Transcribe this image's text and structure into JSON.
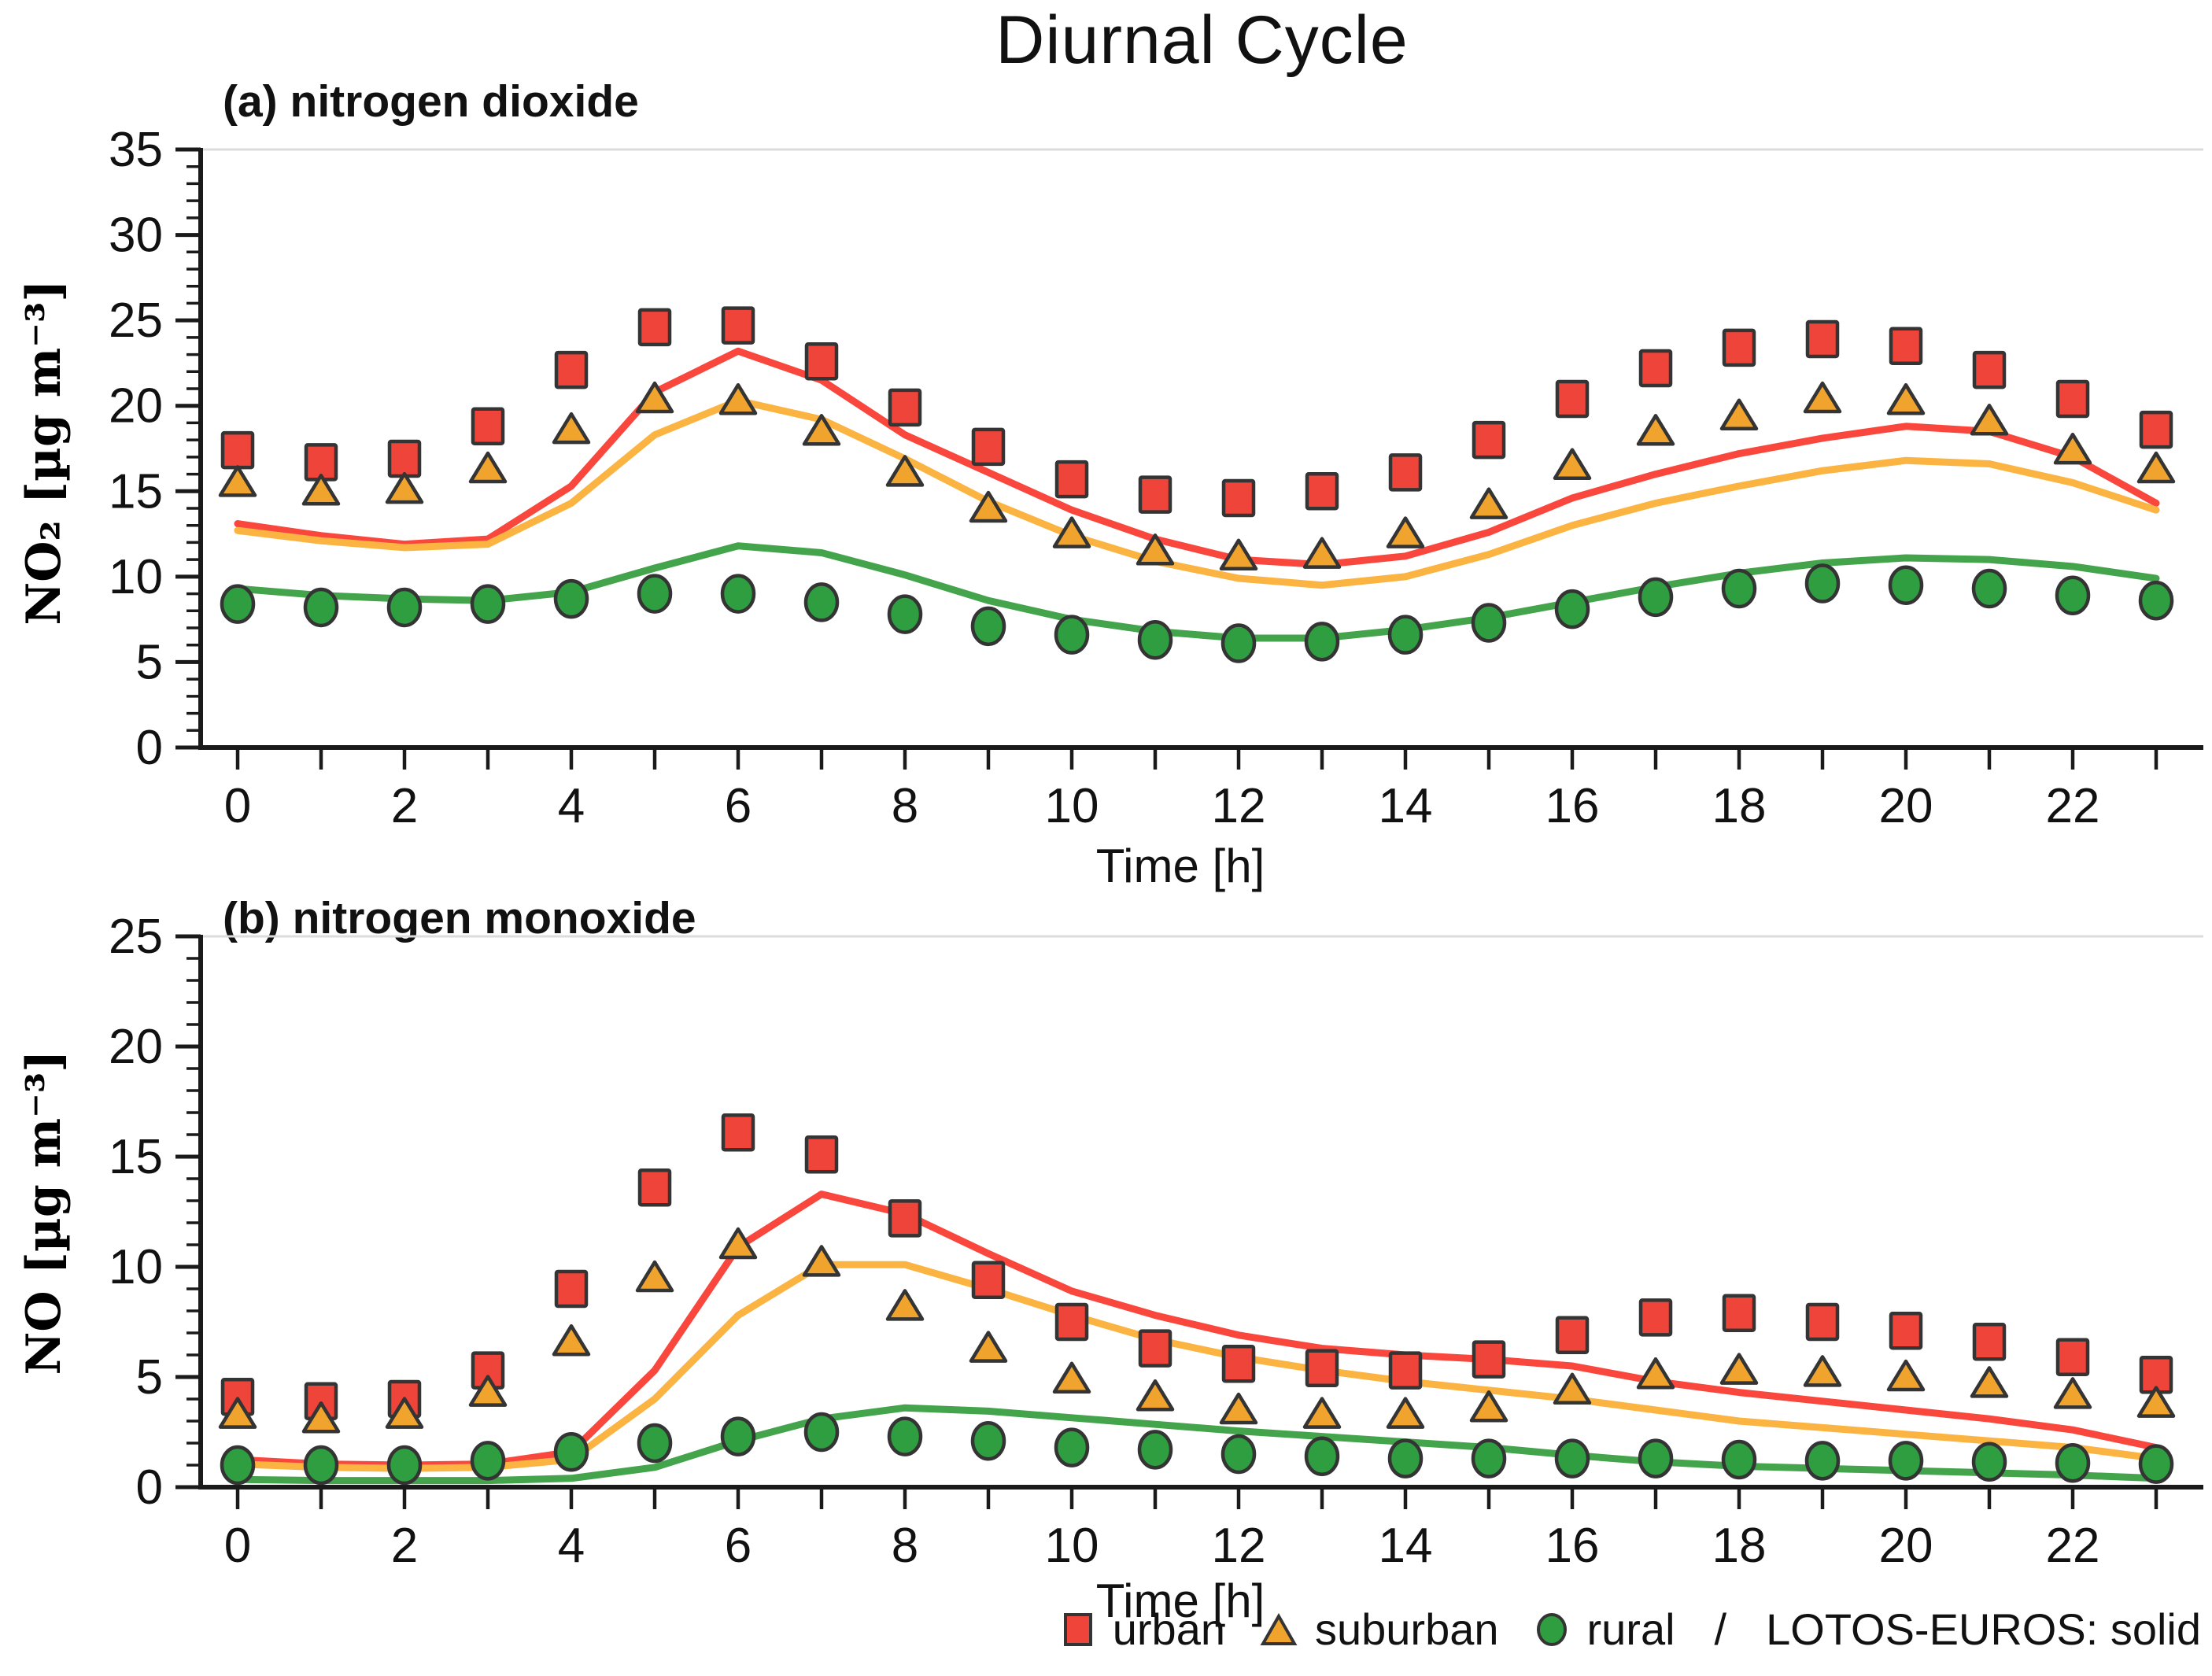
{
  "title": "Diurnal Cycle",
  "legend": {
    "items": [
      {
        "label": "urban",
        "marker": "square",
        "color": "#ee443a"
      },
      {
        "label": "suburban",
        "marker": "triangle",
        "color": "#f0a42e"
      },
      {
        "label": "rural",
        "marker": "circle",
        "color": "#2e9e41"
      }
    ],
    "separator": "/",
    "note": "LOTOS-EUROS: solid"
  },
  "colors": {
    "urban_marker": "#ee443a",
    "urban_line": "#f9473d",
    "suburban_marker": "#f0a42e",
    "suburban_line": "#fbb441",
    "rural_marker": "#2e9e41",
    "rural_line": "#43a44c",
    "marker_outline": "#343434",
    "axis": "#1a1a1a",
    "top_spine": "#dcdcdc"
  },
  "chart_data": [
    {
      "type": "line+scatter",
      "panel_label": "(a) nitrogen dioxide",
      "title": "Diurnal Cycle",
      "xlabel": "Time [h]",
      "ylabel": "NO₂ [µg m⁻³]",
      "x": [
        0,
        1,
        2,
        3,
        4,
        5,
        6,
        7,
        8,
        9,
        10,
        11,
        12,
        13,
        14,
        15,
        16,
        17,
        18,
        19,
        20,
        21,
        22,
        23
      ],
      "xtick_labels": [
        0,
        2,
        4,
        6,
        8,
        10,
        12,
        14,
        16,
        18,
        20,
        22
      ],
      "ylim": [
        0,
        35
      ],
      "ytick_major": 5,
      "ytick_minor": 1,
      "grid": false,
      "legend_position": "below-figure",
      "series": [
        {
          "name": "urban",
          "role": "observations",
          "marker": "square",
          "color": "#ee443a",
          "values": [
            17.4,
            16.7,
            16.9,
            18.8,
            22.1,
            24.6,
            24.7,
            22.6,
            19.9,
            17.6,
            15.7,
            14.8,
            14.6,
            15.0,
            16.1,
            18.0,
            20.4,
            22.2,
            23.4,
            23.9,
            23.5,
            22.1,
            20.4,
            18.6
          ]
        },
        {
          "name": "suburban",
          "role": "observations",
          "marker": "triangle",
          "color": "#f0a42e",
          "values": [
            15.5,
            15.0,
            15.1,
            16.3,
            18.6,
            20.4,
            20.3,
            18.5,
            16.1,
            14.0,
            12.5,
            11.5,
            11.2,
            11.3,
            12.5,
            14.2,
            16.5,
            18.5,
            19.4,
            20.4,
            20.3,
            19.1,
            17.4,
            16.3
          ]
        },
        {
          "name": "rural",
          "role": "observations",
          "marker": "circle",
          "color": "#2e9e41",
          "values": [
            8.4,
            8.2,
            8.2,
            8.4,
            8.7,
            9.0,
            9.0,
            8.5,
            7.8,
            7.1,
            6.6,
            6.3,
            6.1,
            6.2,
            6.6,
            7.3,
            8.1,
            8.8,
            9.3,
            9.6,
            9.5,
            9.3,
            8.9,
            8.6
          ]
        },
        {
          "name": "urban LOTOS-EUROS",
          "role": "model",
          "line": "solid",
          "color": "#f9473d",
          "values": [
            13.1,
            12.4,
            11.9,
            12.2,
            15.3,
            20.8,
            23.2,
            21.5,
            18.3,
            16.1,
            13.9,
            12.2,
            11.0,
            10.7,
            11.2,
            12.6,
            14.6,
            16.0,
            17.2,
            18.1,
            18.8,
            18.5,
            17.0,
            14.3
          ]
        },
        {
          "name": "suburban LOTOS-EUROS",
          "role": "model",
          "line": "solid",
          "color": "#fbb441",
          "values": [
            12.7,
            12.1,
            11.7,
            11.9,
            14.3,
            18.3,
            20.3,
            19.2,
            16.9,
            14.4,
            12.4,
            10.9,
            9.9,
            9.5,
            10.0,
            11.3,
            13.0,
            14.3,
            15.3,
            16.2,
            16.8,
            16.6,
            15.5,
            13.9
          ]
        },
        {
          "name": "rural LOTOS-EUROS",
          "role": "model",
          "line": "solid",
          "color": "#43a44c",
          "values": [
            9.3,
            8.9,
            8.7,
            8.6,
            9.1,
            10.5,
            11.8,
            11.4,
            10.1,
            8.6,
            7.5,
            6.8,
            6.4,
            6.4,
            6.9,
            7.6,
            8.5,
            9.4,
            10.2,
            10.8,
            11.1,
            11.0,
            10.6,
            9.9
          ]
        }
      ]
    },
    {
      "type": "line+scatter",
      "panel_label": "(b) nitrogen monoxide",
      "xlabel": "Time [h]",
      "ylabel": "NO [µg m⁻³]",
      "x": [
        0,
        1,
        2,
        3,
        4,
        5,
        6,
        7,
        8,
        9,
        10,
        11,
        12,
        13,
        14,
        15,
        16,
        17,
        18,
        19,
        20,
        21,
        22,
        23
      ],
      "xtick_labels": [
        0,
        2,
        4,
        6,
        8,
        10,
        12,
        14,
        16,
        18,
        20,
        22
      ],
      "ylim": [
        0,
        25
      ],
      "ytick_major": 5,
      "ytick_minor": 1,
      "grid": false,
      "legend_position": "below-figure",
      "series": [
        {
          "name": "urban",
          "role": "observations",
          "marker": "square",
          "color": "#ee443a",
          "values": [
            4.1,
            3.9,
            4.0,
            5.3,
            9.0,
            13.6,
            16.1,
            15.1,
            12.2,
            9.4,
            7.5,
            6.3,
            5.6,
            5.4,
            5.3,
            5.8,
            6.9,
            7.7,
            7.9,
            7.5,
            7.1,
            6.6,
            5.9,
            5.1
          ]
        },
        {
          "name": "suburban",
          "role": "observations",
          "marker": "triangle",
          "color": "#f0a42e",
          "values": [
            3.3,
            3.1,
            3.3,
            4.3,
            6.6,
            9.5,
            11.0,
            10.2,
            8.2,
            6.3,
            4.9,
            4.1,
            3.5,
            3.3,
            3.3,
            3.6,
            4.4,
            5.1,
            5.3,
            5.2,
            5.0,
            4.7,
            4.2,
            3.8
          ]
        },
        {
          "name": "rural",
          "role": "observations",
          "marker": "circle",
          "color": "#2e9e41",
          "values": [
            1.0,
            1.0,
            1.0,
            1.2,
            1.6,
            2.0,
            2.3,
            2.5,
            2.3,
            2.1,
            1.8,
            1.7,
            1.5,
            1.4,
            1.3,
            1.3,
            1.3,
            1.3,
            1.25,
            1.2,
            1.2,
            1.15,
            1.1,
            1.05
          ]
        },
        {
          "name": "urban LOTOS-EUROS",
          "role": "model",
          "line": "solid",
          "color": "#f9473d",
          "values": [
            1.25,
            1.05,
            1.0,
            1.05,
            1.6,
            5.3,
            10.9,
            13.3,
            12.4,
            10.6,
            8.9,
            7.8,
            6.9,
            6.3,
            6.0,
            5.8,
            5.5,
            4.8,
            4.3,
            3.9,
            3.5,
            3.1,
            2.6,
            1.8
          ]
        },
        {
          "name": "suburban LOTOS-EUROS",
          "role": "model",
          "line": "solid",
          "color": "#fbb441",
          "values": [
            1.05,
            0.9,
            0.85,
            0.9,
            1.25,
            4.0,
            7.8,
            10.1,
            10.1,
            9.0,
            7.8,
            6.7,
            5.9,
            5.3,
            4.8,
            4.4,
            4.0,
            3.5,
            3.0,
            2.7,
            2.4,
            2.1,
            1.8,
            1.3
          ]
        },
        {
          "name": "rural LOTOS-EUROS",
          "role": "model",
          "line": "solid",
          "color": "#43a44c",
          "values": [
            0.35,
            0.3,
            0.3,
            0.3,
            0.4,
            0.9,
            2.1,
            3.1,
            3.6,
            3.45,
            3.15,
            2.85,
            2.55,
            2.3,
            2.05,
            1.8,
            1.45,
            1.15,
            0.95,
            0.85,
            0.75,
            0.65,
            0.55,
            0.4
          ]
        }
      ]
    }
  ]
}
